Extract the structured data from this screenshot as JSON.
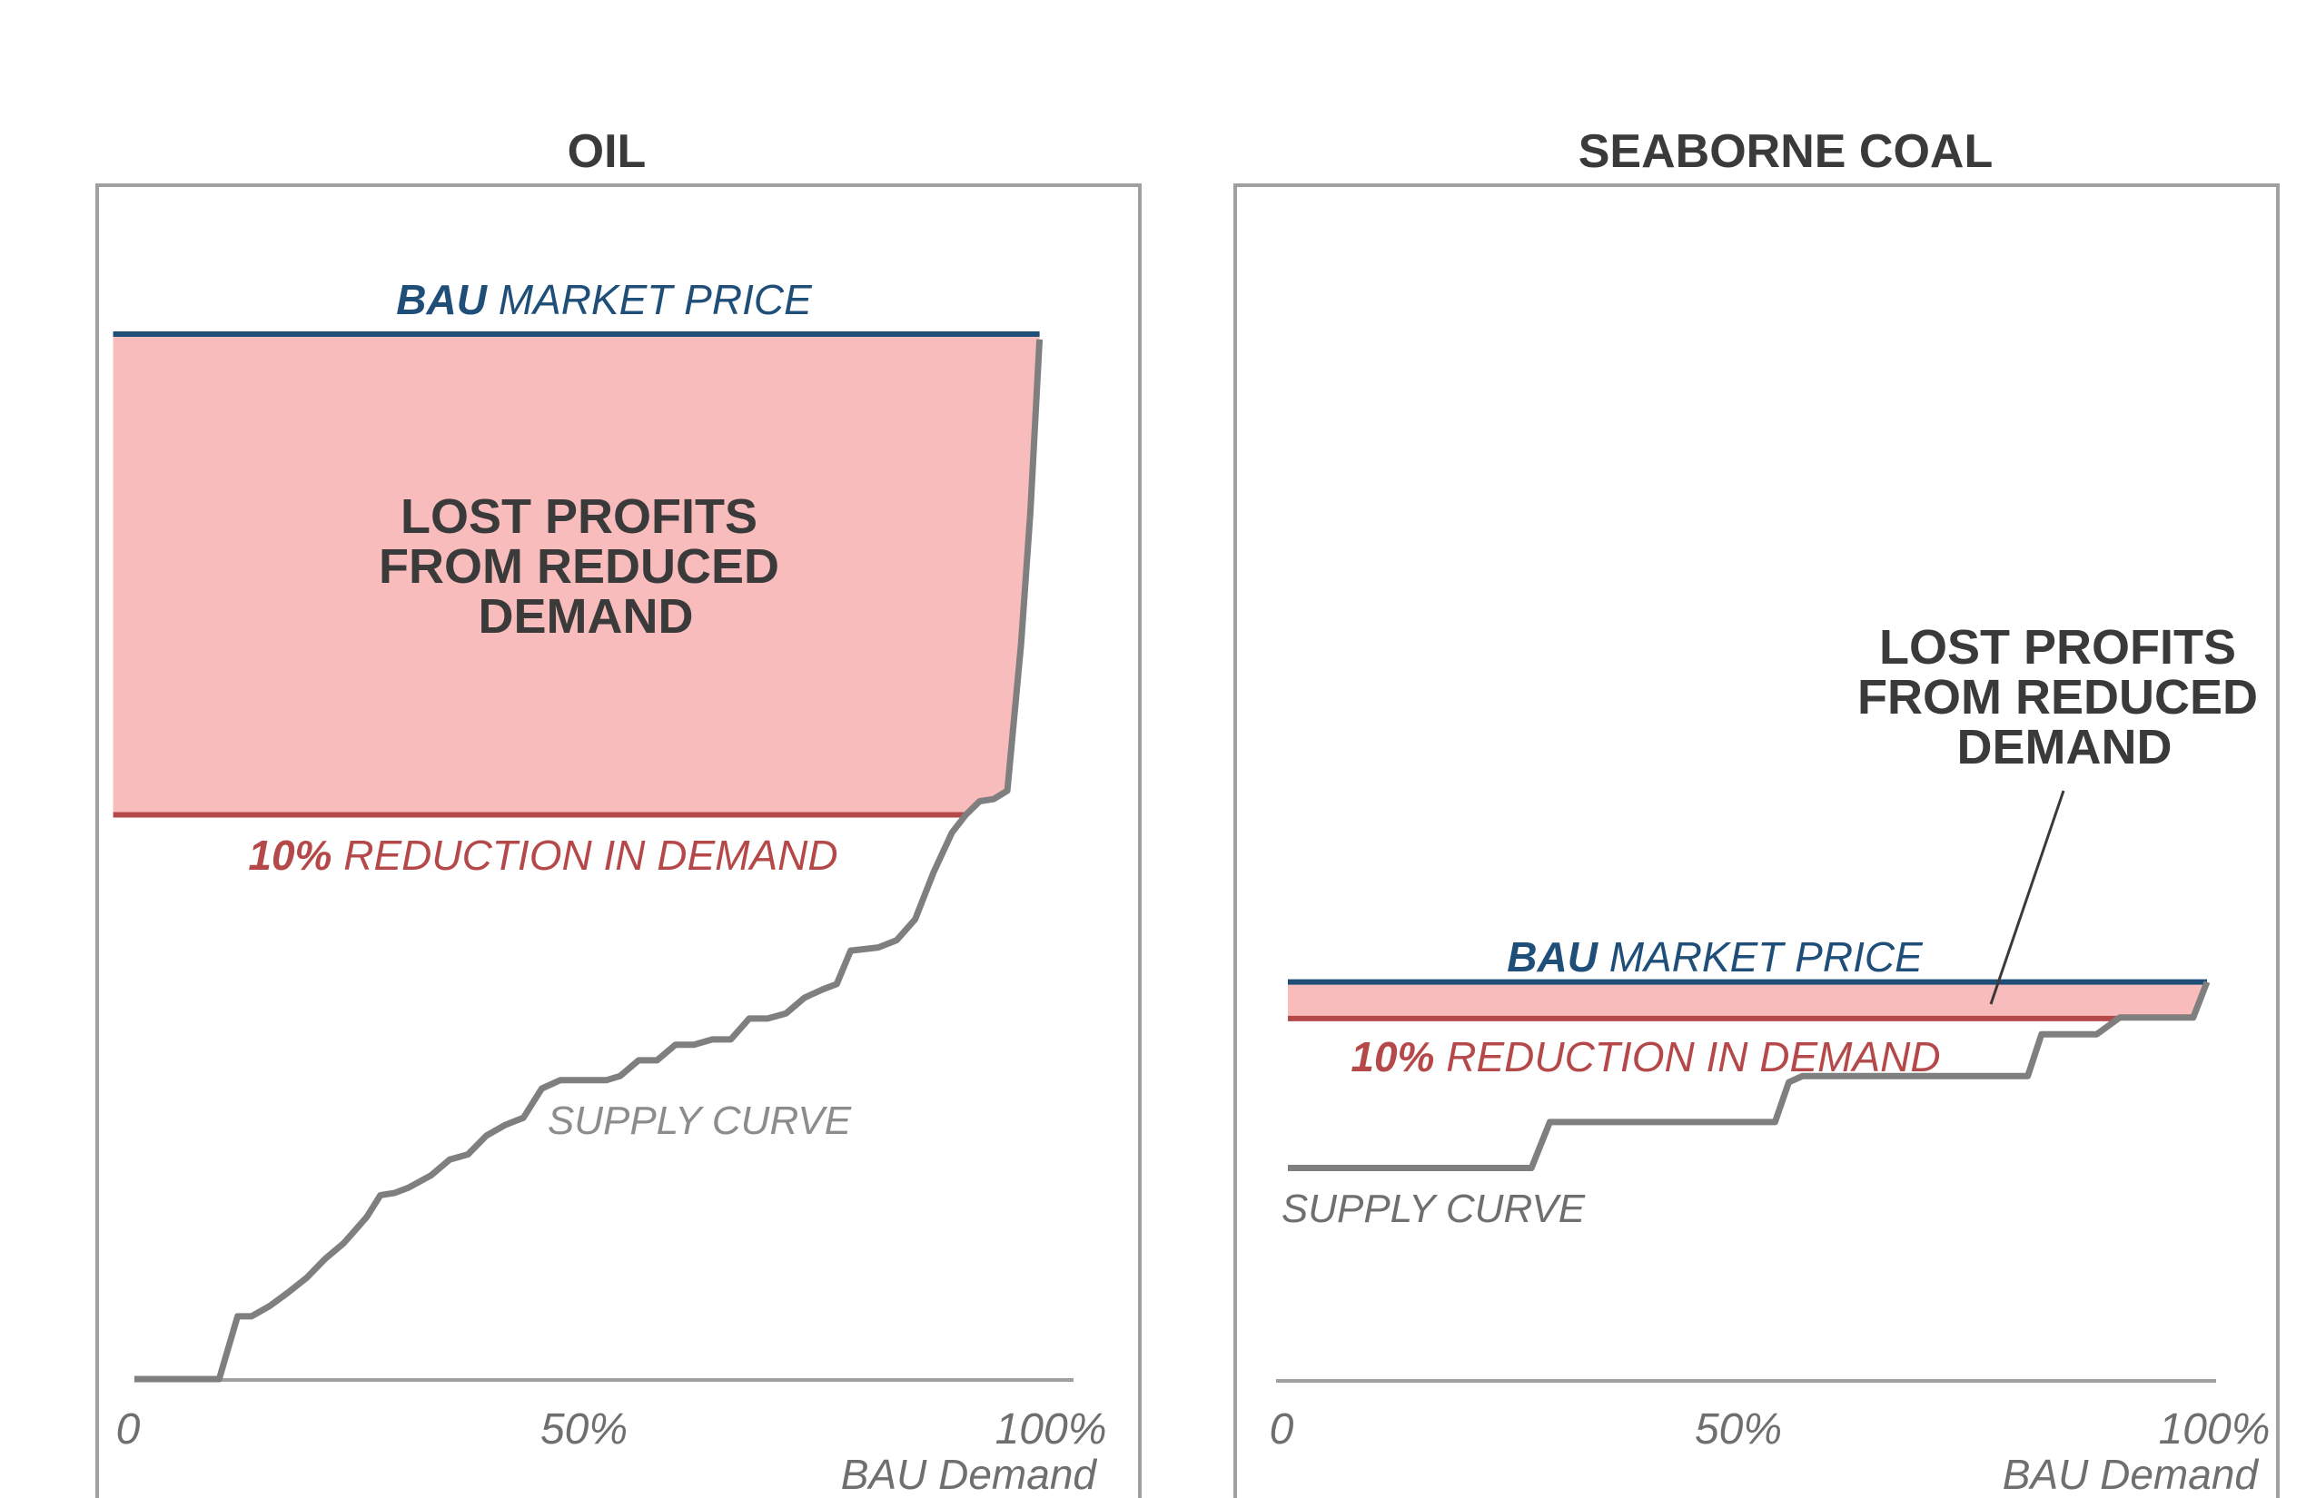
{
  "chart_data": [
    {
      "type": "area",
      "title": "OIL",
      "xlabel": "BAU Demand",
      "x_ticks": [
        "0",
        "50%",
        "100%"
      ],
      "xlim": [
        0,
        100
      ],
      "ylim": [
        0,
        100
      ],
      "bau_price": {
        "bold": "BAU",
        "rest": " MARKET PRICE",
        "value": 100
      },
      "reduced_price": {
        "bold": "10%",
        "rest": " REDUCTION IN DEMAND",
        "value": 54
      },
      "shaded_label": [
        "LOST PROFITS",
        "FROM REDUCED",
        "DEMAND"
      ],
      "supply_label": "SUPPLY CURVE",
      "supply_curve": [
        [
          0,
          0
        ],
        [
          8.5,
          0
        ],
        [
          10.5,
          6
        ],
        [
          12,
          6
        ],
        [
          14,
          7
        ],
        [
          16,
          8.3
        ],
        [
          18,
          9.7
        ],
        [
          20,
          11.5
        ],
        [
          22,
          13
        ],
        [
          23,
          14
        ],
        [
          24.5,
          15.5
        ],
        [
          26,
          17.6
        ],
        [
          27.5,
          17.8
        ],
        [
          29,
          18.3
        ],
        [
          31.5,
          19.5
        ],
        [
          33.5,
          21
        ],
        [
          35.5,
          21.5
        ],
        [
          37.5,
          23.3
        ],
        [
          39.5,
          24.3
        ],
        [
          41.5,
          25
        ],
        [
          43.5,
          27.8
        ],
        [
          45.5,
          28.6
        ],
        [
          48,
          28.6
        ],
        [
          50.5,
          28.6
        ],
        [
          52,
          29
        ],
        [
          54,
          30.5
        ],
        [
          56,
          30.5
        ],
        [
          58,
          32
        ],
        [
          60,
          32
        ],
        [
          62,
          32.5
        ],
        [
          64,
          32.5
        ],
        [
          66,
          34.5
        ],
        [
          68,
          34.5
        ],
        [
          70,
          35
        ],
        [
          72,
          36.5
        ],
        [
          74,
          37.3
        ],
        [
          75.5,
          37.8
        ],
        [
          77,
          41
        ],
        [
          80,
          41.3
        ],
        [
          82,
          42
        ],
        [
          84,
          44
        ],
        [
          86,
          48.5
        ],
        [
          88,
          52.3
        ],
        [
          89.5,
          54
        ],
        [
          91,
          55.3
        ],
        [
          92.5,
          55.5
        ],
        [
          94,
          56.3
        ],
        [
          95.5,
          70.4
        ],
        [
          96.5,
          83
        ],
        [
          97.5,
          99.5
        ]
      ]
    },
    {
      "type": "area",
      "title": "SEABORNE COAL",
      "xlabel": "BAU Demand",
      "x_ticks": [
        "0",
        "50%",
        "100%"
      ],
      "xlim": [
        0,
        100
      ],
      "ylim": [
        0,
        100
      ],
      "bau_price": {
        "bold": "BAU",
        "rest": " MARKET PRICE",
        "value": 38
      },
      "reduced_price": {
        "bold": "10%",
        "rest": " REDUCTION IN DEMAND",
        "value": 34.5
      },
      "shaded_label": [
        "LOST PROFITS",
        "FROM REDUCED",
        "DEMAND"
      ],
      "supply_label": "SUPPLY CURVE",
      "supply_curve": [
        [
          0,
          20.2
        ],
        [
          26.5,
          20.2
        ],
        [
          28.5,
          24.6
        ],
        [
          53,
          24.6
        ],
        [
          54.5,
          28.4
        ],
        [
          56,
          29
        ],
        [
          80.5,
          29
        ],
        [
          82,
          33
        ],
        [
          88,
          33
        ],
        [
          90.5,
          34.6
        ],
        [
          98.5,
          34.6
        ],
        [
          100,
          38
        ]
      ]
    }
  ]
}
